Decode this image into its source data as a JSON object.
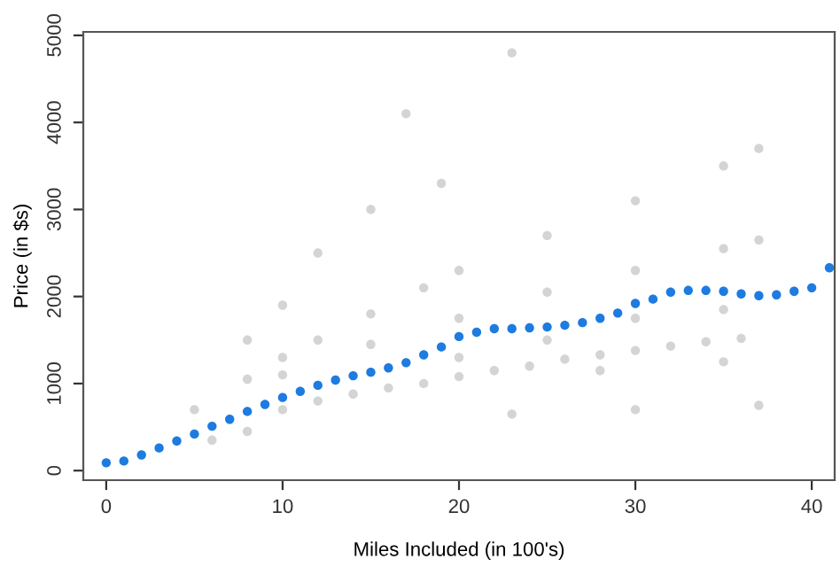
{
  "chart_data": {
    "type": "scatter",
    "xlabel": "Miles Included (in 100's)",
    "ylabel": "Price (in $s)",
    "xlim": [
      -1.3,
      41.3
    ],
    "ylim": [
      -110,
      5040
    ],
    "xticks": [
      0,
      10,
      20,
      30,
      40
    ],
    "yticks": [
      0,
      1000,
      2000,
      3000,
      4000,
      5000
    ],
    "grid": false,
    "legend": false,
    "marker": "circle",
    "series": [
      {
        "color": "#d4d4d4",
        "x": [
          6,
          8,
          10,
          12,
          14,
          16,
          18,
          20,
          22,
          24,
          26,
          28,
          30,
          32,
          34,
          36,
          5,
          8,
          10,
          12,
          15,
          18,
          20,
          25,
          30,
          35,
          37,
          10,
          15,
          20,
          25,
          30,
          35,
          37,
          23,
          30,
          37,
          20,
          25,
          30,
          35,
          12,
          15,
          19,
          23,
          17,
          10,
          8,
          28,
          35
        ],
        "values": [
          350,
          450,
          700,
          800,
          880,
          950,
          1000,
          1080,
          1150,
          1200,
          1280,
          1330,
          1380,
          1430,
          1480,
          1520,
          700,
          1050,
          1300,
          1500,
          1800,
          2100,
          2300,
          2700,
          3100,
          3500,
          3700,
          1100,
          1450,
          1750,
          2050,
          2300,
          2550,
          2650,
          650,
          700,
          750,
          1300,
          1500,
          1750,
          1850,
          2500,
          3000,
          3300,
          4800,
          4100,
          1900,
          1500,
          1150,
          1250
        ]
      },
      {
        "color": "#1e7be0",
        "x": [
          0,
          1,
          2,
          3,
          4,
          5,
          6,
          7,
          8,
          9,
          10,
          11,
          12,
          13,
          14,
          15,
          16,
          17,
          18,
          19,
          20,
          21,
          22,
          23,
          24,
          25,
          26,
          27,
          28,
          29,
          30,
          31,
          32,
          33,
          34,
          35,
          36,
          37,
          38,
          39,
          40,
          41
        ],
        "values": [
          90,
          110,
          180,
          260,
          340,
          420,
          510,
          590,
          680,
          760,
          840,
          910,
          980,
          1040,
          1090,
          1130,
          1180,
          1240,
          1330,
          1420,
          1540,
          1590,
          1630,
          1630,
          1640,
          1650,
          1670,
          1700,
          1750,
          1810,
          1920,
          1970,
          2050,
          2070,
          2070,
          2060,
          2030,
          2010,
          2020,
          2060,
          2100,
          2330
        ]
      }
    ]
  }
}
